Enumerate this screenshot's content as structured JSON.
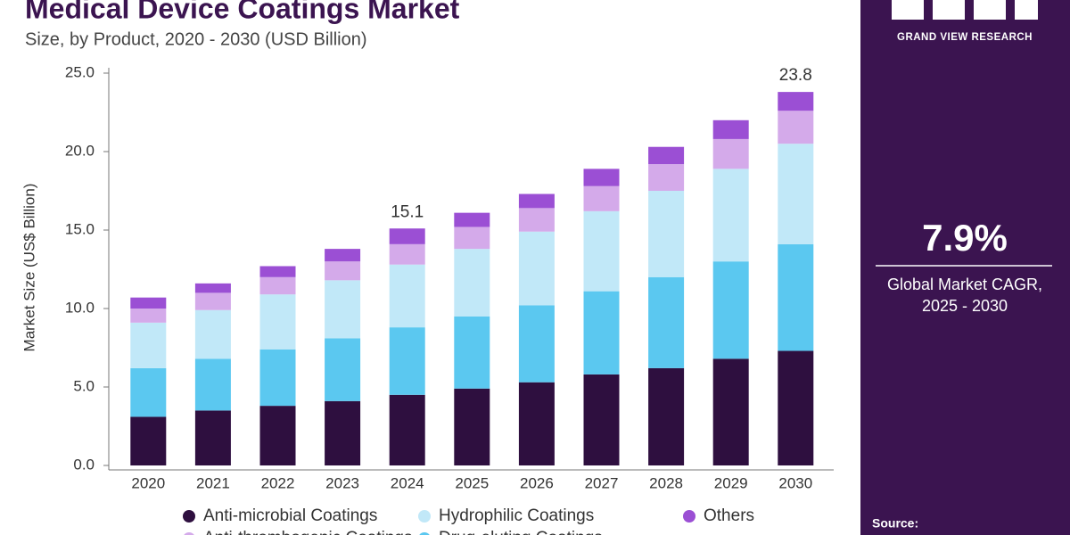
{
  "chart_data": {
    "type": "stacked-bar",
    "title": "Medical Device Coatings Market",
    "subtitle": "Size, by Product, 2020 - 2030 (USD Billion)",
    "y_label": "Market Size (US$ Billion)",
    "categories": [
      "2020",
      "2021",
      "2022",
      "2023",
      "2024",
      "2025",
      "2026",
      "2027",
      "2028",
      "2029",
      "2030"
    ],
    "series": [
      {
        "name": "Anti-microbial Coatings",
        "color": "#2e0f3f",
        "values": [
          3.1,
          3.5,
          3.8,
          4.1,
          4.5,
          4.9,
          5.3,
          5.8,
          6.2,
          6.8,
          7.3
        ]
      },
      {
        "name": "Drug-eluting Coatings",
        "color": "#5bc8f0",
        "values": [
          3.1,
          3.3,
          3.6,
          4.0,
          4.3,
          4.6,
          4.9,
          5.3,
          5.8,
          6.2,
          6.8
        ]
      },
      {
        "name": "Hydrophilic Coatings",
        "color": "#c1e8f8",
        "values": [
          2.9,
          3.1,
          3.5,
          3.7,
          4.0,
          4.3,
          4.7,
          5.1,
          5.5,
          5.9,
          6.4
        ]
      },
      {
        "name": "Anti-thrombogenic Coatings",
        "color": "#d4aaea",
        "values": [
          0.9,
          1.1,
          1.1,
          1.2,
          1.3,
          1.4,
          1.5,
          1.6,
          1.7,
          1.9,
          2.1
        ]
      },
      {
        "name": "Others",
        "color": "#9b4fd4",
        "values": [
          0.7,
          0.6,
          0.7,
          0.8,
          1.0,
          0.9,
          0.9,
          1.1,
          1.1,
          1.2,
          1.2
        ]
      }
    ],
    "totals": [
      null,
      null,
      null,
      null,
      15.1,
      null,
      null,
      null,
      null,
      null,
      23.8
    ],
    "ylim": [
      0,
      25
    ],
    "yticks": [
      {
        "value": 0,
        "label": "0.0"
      },
      {
        "value": 5,
        "label": "5.0"
      },
      {
        "value": 10,
        "label": "10.0"
      },
      {
        "value": 15,
        "label": "15.0"
      },
      {
        "value": 20,
        "label": "20.0"
      },
      {
        "value": 25,
        "label": "25.0"
      }
    ],
    "grid": false
  },
  "sidebar": {
    "brand": "GRAND VIEW RESEARCH",
    "cagr": "7.9%",
    "cagr_label_1": "Global Market CAGR,",
    "cagr_label_2": "2025 - 2030",
    "source": "Source:"
  }
}
